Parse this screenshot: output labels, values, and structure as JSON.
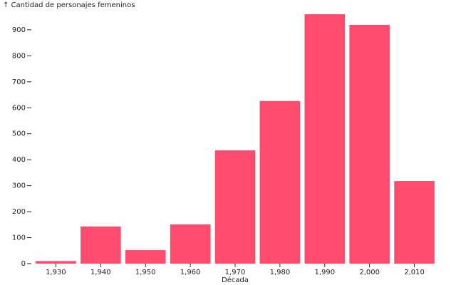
{
  "chart_data": {
    "type": "bar",
    "y_label": "↑ Cantidad de personajes femeninos",
    "x_label": "Década",
    "categories": [
      "1,930",
      "1,940",
      "1,950",
      "1,960",
      "1,970",
      "1,980",
      "1,990",
      "2,000",
      "2,010"
    ],
    "values": [
      10,
      143,
      52,
      151,
      436,
      626,
      960,
      919,
      318
    ],
    "color": "#ff4b6e",
    "ylim": [
      0,
      960
    ],
    "yticks": [
      0,
      100,
      200,
      300,
      400,
      500,
      600,
      700,
      800,
      900
    ]
  }
}
